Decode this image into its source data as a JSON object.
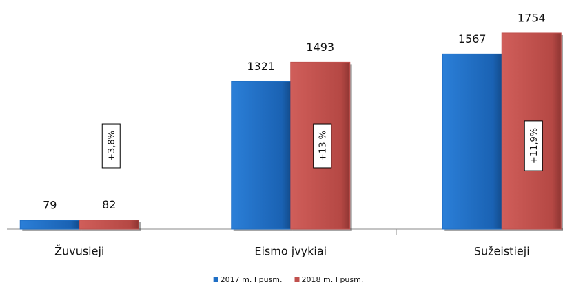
{
  "chart_data": {
    "type": "bar",
    "categories": [
      "Žuvusieji",
      "Eismo įvykiai",
      "Sužeistieji"
    ],
    "series": [
      {
        "name": "2017 m. I pusm.",
        "color": "#1f6fc5",
        "values": [
          79,
          1321,
          1567
        ]
      },
      {
        "name": "2018 m. I pusm.",
        "color": "#c0504d",
        "values": [
          82,
          1493,
          1754
        ]
      }
    ],
    "annotations": [
      "+3,8%",
      "+13 %",
      "+11,9%"
    ],
    "ylim": [
      0,
      2000
    ]
  }
}
